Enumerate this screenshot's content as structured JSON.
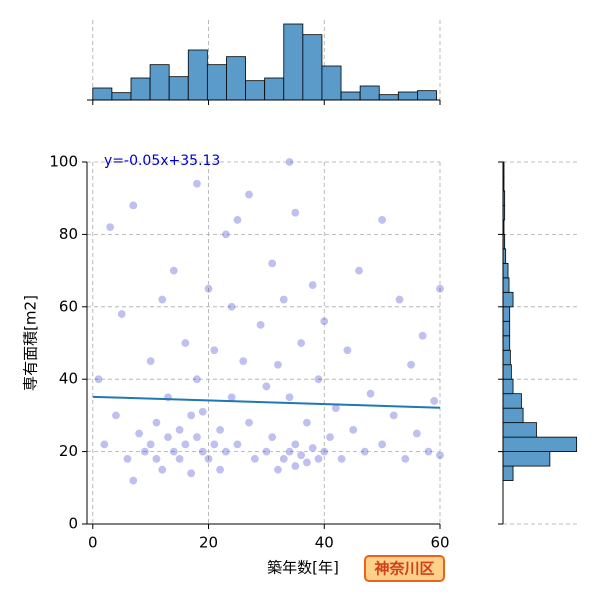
{
  "chart_data": {
    "type": "scatter",
    "x_label": "築年数[年]",
    "y_label": "専有面積[m2]",
    "annotation": "y=-0.05x+35.13",
    "badge": "神奈川区",
    "color": "#2a2acc",
    "xlim": [
      -1,
      60
    ],
    "ylim": [
      0,
      100
    ],
    "xticks": [
      0,
      20,
      40,
      60
    ],
    "yticks": [
      0,
      20,
      40,
      60,
      80,
      100
    ],
    "grid": true,
    "x": [
      1,
      2,
      3,
      4,
      5,
      6,
      7,
      8,
      9,
      10,
      10,
      11,
      11,
      12,
      12,
      13,
      13,
      14,
      14,
      15,
      15,
      16,
      16,
      17,
      17,
      18,
      18,
      19,
      19,
      20,
      20,
      21,
      21,
      22,
      22,
      23,
      23,
      24,
      24,
      25,
      25,
      26,
      27,
      27,
      28,
      29,
      30,
      30,
      31,
      31,
      32,
      32,
      33,
      33,
      34,
      34,
      35,
      35,
      35,
      36,
      36,
      37,
      37,
      38,
      38,
      39,
      39,
      40,
      40,
      41,
      42,
      43,
      44,
      45,
      46,
      47,
      48,
      50,
      50,
      52,
      53,
      54,
      55,
      56,
      57,
      58,
      59,
      60,
      60,
      34,
      7,
      18
    ],
    "y": [
      40,
      22,
      82,
      30,
      58,
      18,
      88,
      25,
      20,
      45,
      22,
      18,
      28,
      15,
      62,
      24,
      35,
      20,
      70,
      26,
      18,
      50,
      22,
      30,
      14,
      24,
      40,
      20,
      31,
      18,
      65,
      22,
      48,
      26,
      15,
      80,
      20,
      60,
      35,
      84,
      22,
      45,
      91,
      28,
      18,
      55,
      38,
      20,
      72,
      24,
      15,
      44,
      18,
      62,
      20,
      35,
      16,
      86,
      22,
      19,
      50,
      17,
      28,
      21,
      66,
      18,
      40,
      20,
      56,
      24,
      32,
      18,
      48,
      26,
      70,
      20,
      36,
      84,
      22,
      30,
      62,
      18,
      44,
      25,
      52,
      20,
      34,
      65,
      19,
      100,
      12,
      94
    ],
    "fit_line": {
      "color": "#1f77b4",
      "x": [
        0,
        60
      ],
      "y": [
        35.13,
        32.13
      ]
    },
    "top_histogram": {
      "type": "histogram",
      "color": "#5a9bc9",
      "bins": [
        0,
        3.3,
        6.6,
        9.9,
        13.2,
        16.5,
        19.8,
        23.1,
        26.4,
        29.7,
        33,
        36.3,
        39.6,
        42.9,
        46.2,
        49.5,
        52.8,
        56.1,
        59.4
      ],
      "counts": [
        18,
        11,
        33,
        53,
        35,
        75,
        53,
        65,
        29,
        33,
        114,
        98,
        51,
        12,
        21,
        8,
        12,
        14
      ],
      "ylim": [
        0,
        120
      ]
    },
    "right_histogram": {
      "type": "histogram",
      "color": "#5a9bc9",
      "bins": [
        12,
        16,
        20,
        24,
        28,
        32,
        36,
        40,
        44,
        48,
        52,
        56,
        60,
        64,
        68,
        72,
        76,
        80,
        84,
        88,
        92,
        96,
        100
      ],
      "counts": [
        30,
        140,
        220,
        100,
        60,
        55,
        30,
        25,
        22,
        20,
        20,
        20,
        30,
        18,
        15,
        8,
        5,
        3,
        5,
        5,
        3,
        3
      ],
      "xlim": [
        0,
        230
      ]
    }
  }
}
